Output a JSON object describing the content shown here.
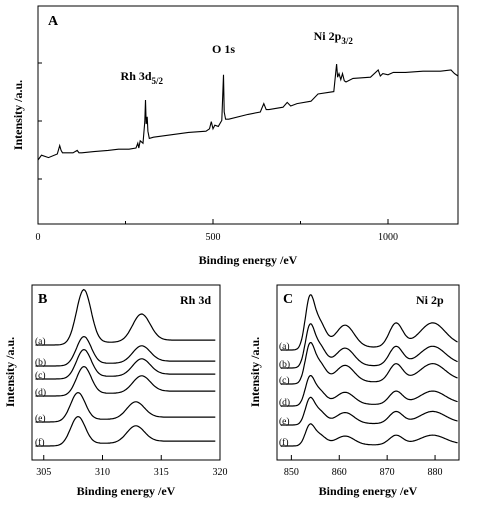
{
  "chart_data": [
    {
      "type": "line",
      "panel": "A",
      "xlabel": "Binding energy /eV",
      "ylabel": "Intensity /a.u.",
      "xlim": [
        0,
        1200
      ],
      "xticks": [
        0,
        500,
        1000
      ],
      "y_ticks_labeled": false,
      "grid": false,
      "annotations": [
        {
          "label": "Rh 3d",
          "sub": "5/2",
          "x": 308
        },
        {
          "label": "O 1s",
          "sub": "",
          "x": 530
        },
        {
          "label": "Ni 2p",
          "sub": "3/2",
          "x": 855
        }
      ],
      "series": [
        {
          "x": [
            0,
            10,
            30,
            55,
            62,
            66,
            70,
            100,
            112,
            117,
            125,
            160,
            200,
            230,
            260,
            280,
            285,
            288,
            292,
            300,
            305,
            307,
            309,
            312,
            314,
            318,
            330,
            380,
            430,
            480,
            490,
            495,
            500,
            505,
            515,
            525,
            530,
            532,
            536,
            545,
            600,
            635,
            645,
            652,
            660,
            700,
            712,
            722,
            740,
            780,
            800,
            845,
            853,
            856,
            860,
            865,
            870,
            875,
            880,
            900,
            950,
            972,
            978,
            985,
            1000,
            1015,
            1050,
            1100,
            1150,
            1180,
            1190,
            1200
          ],
          "y": [
            0.0,
            0.04,
            0.02,
            0.05,
            0.12,
            0.08,
            0.06,
            0.06,
            0.08,
            0.06,
            0.06,
            0.07,
            0.08,
            0.09,
            0.09,
            0.1,
            0.14,
            0.1,
            0.16,
            0.14,
            0.32,
            0.5,
            0.3,
            0.36,
            0.24,
            0.18,
            0.19,
            0.21,
            0.23,
            0.24,
            0.26,
            0.32,
            0.26,
            0.29,
            0.28,
            0.33,
            0.71,
            0.4,
            0.34,
            0.34,
            0.38,
            0.4,
            0.47,
            0.42,
            0.42,
            0.44,
            0.48,
            0.45,
            0.47,
            0.49,
            0.55,
            0.57,
            0.8,
            0.69,
            0.72,
            0.67,
            0.72,
            0.66,
            0.65,
            0.68,
            0.69,
            0.75,
            0.7,
            0.72,
            0.71,
            0.73,
            0.73,
            0.74,
            0.74,
            0.75,
            0.72,
            0.7
          ]
        }
      ]
    },
    {
      "type": "line",
      "panel": "B",
      "title": "Rh 3d",
      "xlabel": "Binding energy /eV",
      "ylabel": "Intensity /a.u.",
      "xlim": [
        304,
        320
      ],
      "xticks": [
        305,
        310,
        315,
        320
      ],
      "grid": false,
      "series": [
        {
          "name": "(a)",
          "center": 308.4,
          "h1": 1.0,
          "h2": 0.5
        },
        {
          "name": "(b)",
          "center": 308.4,
          "h1": 0.52,
          "h2": 0.3
        },
        {
          "name": "(c)",
          "center": 308.4,
          "h1": 0.52,
          "h2": 0.3
        },
        {
          "name": "(d)",
          "center": 308.4,
          "h1": 0.52,
          "h2": 0.3
        },
        {
          "name": "(e)",
          "center": 307.9,
          "h1": 0.52,
          "h2": 0.3
        },
        {
          "name": "(f)",
          "center": 307.9,
          "h1": 0.52,
          "h2": 0.3
        }
      ]
    },
    {
      "type": "line",
      "panel": "C",
      "title": "Ni 2p",
      "xlabel": "Binding energy /eV",
      "ylabel": "Intensity /a.u.",
      "xlim": [
        847,
        885
      ],
      "xticks": [
        850,
        860,
        870,
        880
      ],
      "grid": false,
      "series": [
        {
          "name": "(a)",
          "scale": 1.0
        },
        {
          "name": "(b)",
          "scale": 0.8
        },
        {
          "name": "(c)",
          "scale": 0.75
        },
        {
          "name": "(d)",
          "scale": 0.55
        },
        {
          "name": "(e)",
          "scale": 0.5
        },
        {
          "name": "(f)",
          "scale": 0.4
        }
      ]
    }
  ]
}
